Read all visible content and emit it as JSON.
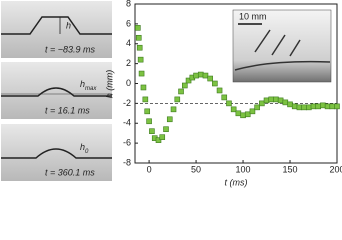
{
  "panels": [
    {
      "label": "h",
      "caption": "t = −83.9 ms"
    },
    {
      "label": "h",
      "sub": "max",
      "caption": "t = 16.1 ms"
    },
    {
      "label": "h",
      "sub": "0",
      "caption": "t = 360.1 ms"
    }
  ],
  "inset": {
    "scale_label": "10 mm"
  },
  "chart_data": {
    "type": "scatter",
    "xlabel": "t (ms)",
    "ylabel": "h (mm)",
    "xlim": [
      -15,
      200
    ],
    "xticks": [
      0,
      50,
      100,
      150,
      200
    ],
    "ylim": [
      -8,
      8
    ],
    "yticks": [
      -8,
      -6,
      -4,
      -2,
      0,
      2,
      4,
      6,
      8
    ],
    "reference_line": -2,
    "series": [
      {
        "color": "#7cc242",
        "x": [
          -12,
          -11,
          -10,
          -9,
          -8,
          -6,
          -4,
          -2,
          0,
          3,
          6,
          10,
          14,
          18,
          22,
          26,
          30,
          34,
          38,
          42,
          46,
          50,
          55,
          60,
          65,
          70,
          75,
          80,
          85,
          90,
          95,
          100,
          105,
          110,
          115,
          120,
          125,
          130,
          135,
          140,
          145,
          150,
          155,
          160,
          165,
          170,
          175,
          180,
          185,
          190,
          195,
          200
        ],
        "values": [
          5.6,
          4.6,
          3.6,
          2.4,
          1.0,
          -0.4,
          -1.6,
          -2.8,
          -3.8,
          -4.8,
          -5.5,
          -5.7,
          -5.4,
          -4.6,
          -3.6,
          -2.6,
          -1.6,
          -0.8,
          -0.2,
          0.3,
          0.6,
          0.8,
          0.9,
          0.8,
          0.5,
          0.0,
          -0.7,
          -1.4,
          -2.0,
          -2.6,
          -3.0,
          -3.2,
          -3.1,
          -2.8,
          -2.4,
          -2.0,
          -1.7,
          -1.6,
          -1.6,
          -1.7,
          -1.9,
          -2.1,
          -2.3,
          -2.4,
          -2.4,
          -2.4,
          -2.3,
          -2.3,
          -2.2,
          -2.3,
          -2.3,
          -2.3
        ]
      }
    ]
  }
}
